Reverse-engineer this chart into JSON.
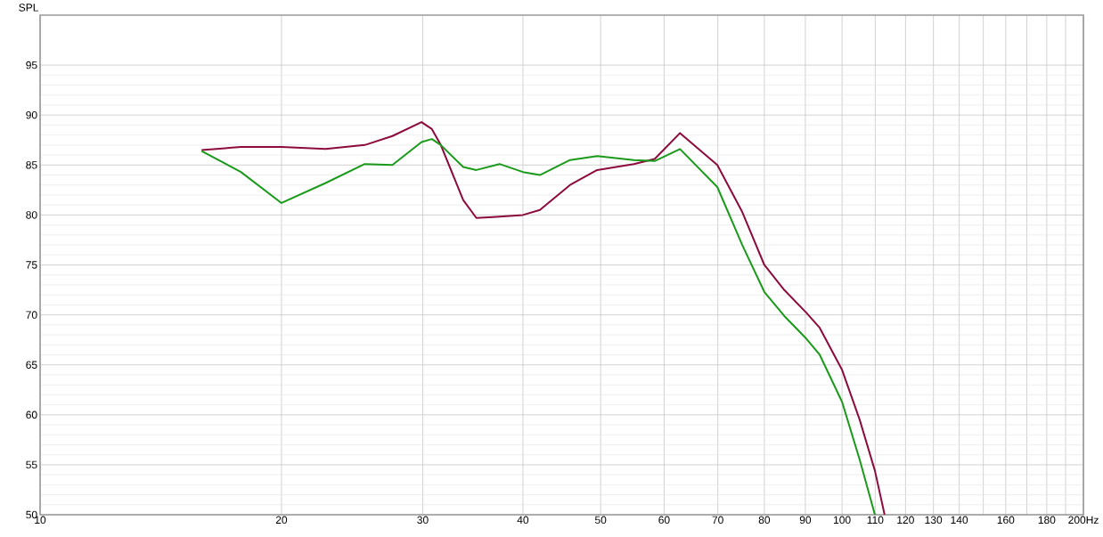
{
  "chart_data": {
    "type": "line",
    "ylabel": "SPL",
    "log": "x",
    "grid": true,
    "xlim": [
      10,
      200
    ],
    "ylim": [
      50,
      100
    ],
    "xticks": [
      10,
      20,
      30,
      40,
      50,
      60,
      70,
      80,
      90,
      100,
      110,
      120,
      130,
      140,
      {
        "value": 150,
        "label": null
      },
      160,
      {
        "value": 170,
        "label": null
      },
      180,
      {
        "value": 190,
        "label": null
      },
      {
        "value": 200,
        "label": "200Hz"
      }
    ],
    "yticks": [
      50,
      55,
      60,
      65,
      70,
      75,
      80,
      85,
      90,
      95
    ],
    "series": [
      {
        "color": "#8c0a3c",
        "x": [
          15.9,
          17.8,
          20,
          22.7,
          25.4,
          27.5,
          29.9,
          30.8,
          31.6,
          33.7,
          35.0,
          36.7,
          40,
          42,
          45.8,
          49.5,
          55,
          58.4,
          62.8,
          69.9,
          75.1,
          80,
          84.7,
          90.3,
          93.8,
          100,
          105.2,
          109.9,
          113
        ],
        "values": [
          86.5,
          86.8,
          86.8,
          86.6,
          87.0,
          87.9,
          89.3,
          88.6,
          87.0,
          81.5,
          79.7,
          79.8,
          80.0,
          80.5,
          83.0,
          84.5,
          85.1,
          85.6,
          88.2,
          85.0,
          80.3,
          75.0,
          72.5,
          70.2,
          68.7,
          64.5,
          59.5,
          54.4,
          50
        ]
      },
      {
        "color": "#1a9a1a",
        "x": [
          15.9,
          17.8,
          20,
          22.7,
          25.4,
          27.5,
          29.9,
          30.8,
          31.6,
          33.7,
          35.0,
          37.4,
          40,
          42,
          45.8,
          49.5,
          55,
          58.4,
          62.8,
          69.9,
          75.1,
          80,
          84.7,
          90.3,
          93.8,
          100,
          105.2,
          109.9
        ],
        "values": [
          86.4,
          84.3,
          81.2,
          83.2,
          85.1,
          85.0,
          87.3,
          87.6,
          87.0,
          84.8,
          84.5,
          85.1,
          84.3,
          84.0,
          85.5,
          85.9,
          85.5,
          85.4,
          86.6,
          82.8,
          77.0,
          72.3,
          69.9,
          67.6,
          66.0,
          61.3,
          55.5,
          50
        ]
      }
    ]
  }
}
